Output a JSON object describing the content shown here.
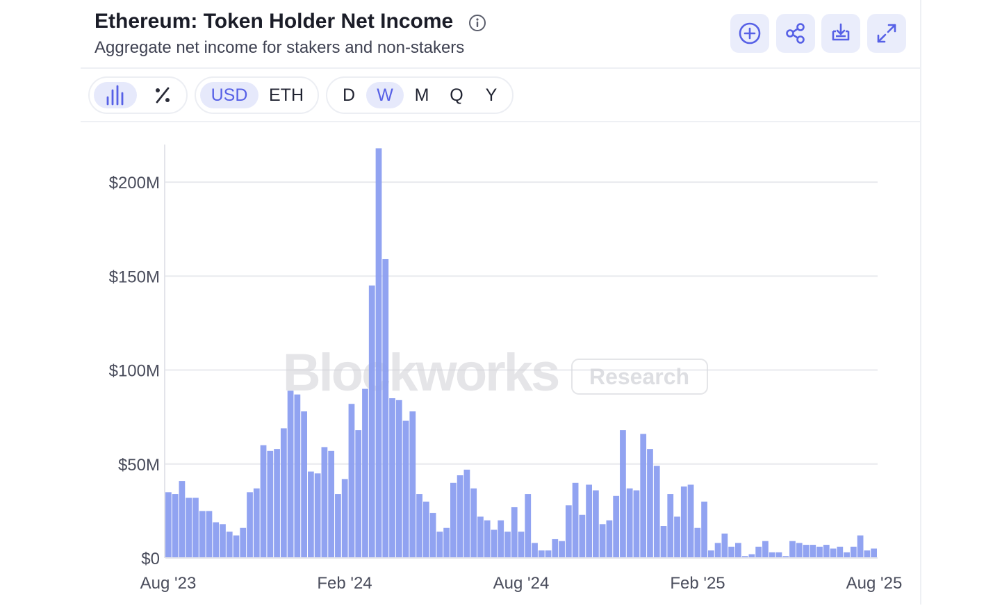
{
  "header": {
    "title": "Ethereum: Token Holder Net Income",
    "subtitle": "Aggregate net income for stakers and non-stakers",
    "buttons": [
      {
        "icon": "add-circle-icon"
      },
      {
        "icon": "share-icon"
      },
      {
        "icon": "download-icon"
      },
      {
        "icon": "expand-icon"
      }
    ]
  },
  "controls": {
    "chart_types": [
      {
        "icon": "bar-chart-icon",
        "active": true
      },
      {
        "icon": "percent-icon",
        "active": false
      }
    ],
    "currency": [
      {
        "label": "USD",
        "active": true
      },
      {
        "label": "ETH",
        "active": false
      }
    ],
    "period": [
      {
        "label": "D",
        "active": false
      },
      {
        "label": "W",
        "active": true
      },
      {
        "label": "M",
        "active": false
      },
      {
        "label": "Q",
        "active": false
      },
      {
        "label": "Y",
        "active": false
      }
    ]
  },
  "watermark": {
    "brand": "Blockworks",
    "tag": "Research"
  },
  "colors": {
    "bar": "#8b9ef0",
    "accent": "#5660e6",
    "button_bg": "#eaedfb",
    "grid": "#e8e9ee"
  },
  "chart_data": {
    "type": "bar",
    "title": "",
    "xlabel": "",
    "ylabel": "",
    "ylim": [
      0,
      220000000
    ],
    "yticks": [
      0,
      50000000,
      100000000,
      150000000,
      200000000
    ],
    "ytick_labels": [
      "$0",
      "$50M",
      "$100M",
      "$150M",
      "$200M"
    ],
    "xtick_labels": [
      "Aug '23",
      "Feb '24",
      "Aug '24",
      "Feb '25",
      "Aug '25"
    ],
    "x_start": "2023-08-07",
    "x_interval": "1 week",
    "values_unit": "USD millions",
    "values": [
      35,
      34,
      41,
      32,
      32,
      25,
      25,
      19,
      18,
      14,
      12,
      16,
      35,
      37,
      60,
      57,
      58,
      69,
      89,
      87,
      78,
      46,
      45,
      59,
      57,
      34,
      42,
      82,
      68,
      90,
      145,
      218,
      159,
      85,
      84,
      73,
      78,
      34,
      30,
      24,
      14,
      16,
      40,
      44,
      47,
      37,
      22,
      20,
      15,
      20,
      14,
      27,
      14,
      34,
      8,
      4,
      4,
      10,
      9,
      28,
      40,
      23,
      39,
      36,
      18,
      20,
      33,
      68,
      37,
      36,
      66,
      58,
      49,
      17,
      34,
      22,
      38,
      39,
      16,
      30,
      4,
      8,
      13,
      6,
      8,
      1,
      2,
      6,
      9,
      3,
      3,
      1,
      9,
      8,
      7,
      7,
      6,
      7,
      5,
      6,
      3,
      6,
      12,
      4,
      5
    ]
  }
}
